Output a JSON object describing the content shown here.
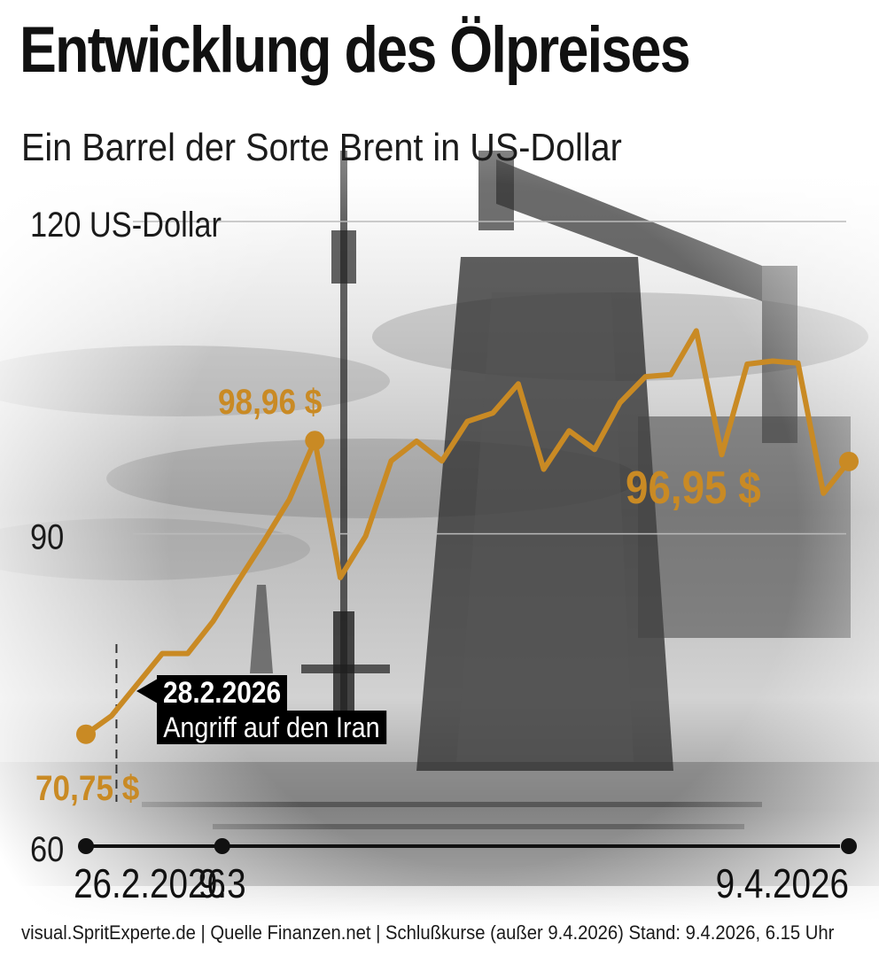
{
  "header": {
    "title": "Entwicklung des Ölpreises",
    "subtitle": "Ein Barrel der Sorte Brent in US-Dollar"
  },
  "annotations": {
    "start_label": "70,75 $",
    "peak_label": "98,96 $",
    "end_label": "96,95 $",
    "event_date": "28.2.2026",
    "event_text": "Angriff auf den Iran"
  },
  "footer": {
    "credit": "visual.SpritExperte.de | Quelle Finanzen.net | Schlußkurse (außer 9.4.2026) Stand: 9.4.2026, 6.15 Uhr"
  },
  "colors": {
    "line": "#c98a24",
    "axis": "#111111",
    "grid": "#bbbbbb"
  },
  "chart_data": {
    "type": "line",
    "title": "Entwicklung des Ölpreises",
    "subtitle": "Ein Barrel der Sorte Brent in US-Dollar",
    "ylim": [
      60,
      120
    ],
    "y_ticks": [
      {
        "value": 60,
        "label": "60"
      },
      {
        "value": 90,
        "label": "90"
      },
      {
        "value": 120,
        "label": "120 US-Dollar"
      }
    ],
    "x_ticks": [
      {
        "index": 0,
        "label": "26.2.2026"
      },
      {
        "index": 5,
        "label": "9.3"
      },
      {
        "index": 28,
        "label": "9.4.2026"
      }
    ],
    "event_index": 1.2,
    "grid": true,
    "series": [
      {
        "values": [
          70.75,
          72.5,
          75.5,
          78.5,
          78.5,
          81.6,
          85.5,
          89.3,
          93.3,
          98.96,
          85.8,
          89.8,
          97.0,
          98.9,
          97.0,
          100.8,
          101.6,
          104.4,
          96.2,
          99.9,
          98.1,
          102.6,
          105.1,
          105.3,
          109.5,
          97.6,
          106.3,
          106.6,
          106.4,
          93.9,
          96.95
        ]
      }
    ],
    "highlighted_points": [
      0,
      9,
      30
    ]
  }
}
